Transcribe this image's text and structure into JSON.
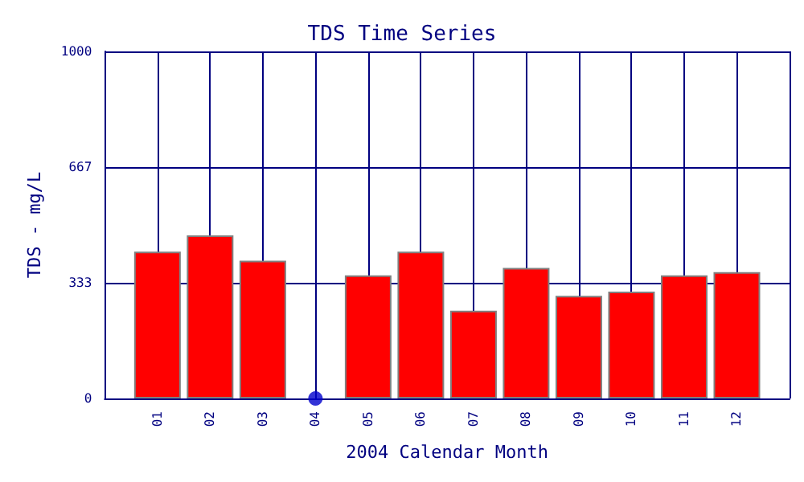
{
  "chart_data": {
    "type": "bar",
    "title": "TDS Time Series",
    "xlabel": "2004 Calendar Month",
    "ylabel": "TDS - mg/L",
    "categories": [
      "01",
      "02",
      "03",
      "04",
      "05",
      "06",
      "07",
      "08",
      "09",
      "10",
      "11",
      "12"
    ],
    "series": [
      {
        "color": "#ff0000",
        "values": [
          423,
          470,
          397,
          null,
          355,
          423,
          253,
          376,
          296,
          308,
          355,
          364
        ]
      },
      {
        "type": "scatter",
        "color": "#0000cc",
        "x": [
          "04"
        ],
        "values": [
          0
        ]
      }
    ],
    "ylim": [
      0,
      1000
    ],
    "yticks": [
      0,
      333,
      667,
      1000
    ],
    "grid": true
  }
}
